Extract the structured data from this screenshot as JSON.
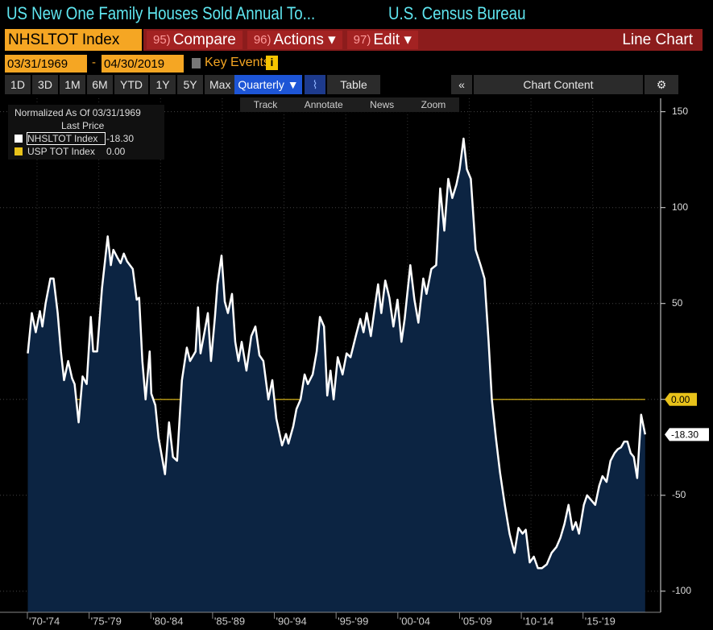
{
  "ui": {
    "title": "US New One Family Houses Sold Annual To...",
    "source": "U.S. Census Bureau",
    "security": "NHSLTOT Index",
    "menu": [
      {
        "num": "95)",
        "label": "Compare"
      },
      {
        "num": "96)",
        "label": "Actions ▾"
      },
      {
        "num": "97)",
        "label": "Edit ▾"
      }
    ],
    "chart_kind": "Line Chart",
    "start_date": "03/31/1969",
    "date_sep": "-",
    "end_date": "04/30/2019",
    "key_events": "Key Events",
    "ranges": [
      "1D",
      "3D",
      "1M",
      "6M",
      "YTD",
      "1Y",
      "5Y",
      "Max"
    ],
    "period": "Quarterly ▼",
    "table": "Table",
    "collapse": "«",
    "chart_content": "Chart Content",
    "tools": [
      "Track",
      "Annotate",
      "News",
      "Zoom"
    ],
    "legend_header": "Normalized As Of 03/31/1969",
    "legend_subheader": "Last Price"
  },
  "chart_data": {
    "type": "line",
    "xlim": [
      1967,
      2020.5
    ],
    "ylim": [
      -111,
      157
    ],
    "yticks": [
      -100,
      -50,
      0,
      50,
      100,
      150
    ],
    "xticks": [
      {
        "value": 1970,
        "label": "'70-'74"
      },
      {
        "value": 1975,
        "label": "'75-'79"
      },
      {
        "value": 1980,
        "label": "'80-'84"
      },
      {
        "value": 1985,
        "label": "'85-'89"
      },
      {
        "value": 1990,
        "label": "'90-'94"
      },
      {
        "value": 1995,
        "label": "'95-'99"
      },
      {
        "value": 2000,
        "label": "'00-'04"
      },
      {
        "value": 2005,
        "label": "'05-'09"
      },
      {
        "value": 2010,
        "label": "'10-'14"
      },
      {
        "value": 2015,
        "label": "'15-'19"
      }
    ],
    "grid": true,
    "series": [
      {
        "name": "NHSLTOT Index",
        "color": "#ffffff",
        "area_color": "#0c2442",
        "last_label": "-18.30",
        "x": [
          1969.25,
          1969.58,
          1969.9,
          1970.23,
          1970.43,
          1970.69,
          1971.08,
          1971.34,
          1971.67,
          1971.93,
          1972.19,
          1972.52,
          1972.84,
          1973.04,
          1973.37,
          1973.69,
          1974.02,
          1974.35,
          1974.54,
          1974.87,
          1975.26,
          1975.72,
          1975.98,
          1976.18,
          1976.5,
          1976.77,
          1977.03,
          1977.29,
          1977.75,
          1978.07,
          1978.27,
          1978.53,
          1978.79,
          1979.12,
          1979.25,
          1979.58,
          1979.84,
          1980.36,
          1980.69,
          1981.01,
          1981.34,
          1981.73,
          1982.13,
          1982.39,
          1982.84,
          1983.04,
          1983.24,
          1983.56,
          1983.83,
          1984.09,
          1984.41,
          1984.61,
          1984.94,
          1985.2,
          1985.46,
          1985.79,
          1986.05,
          1986.31,
          1986.57,
          1986.96,
          1987.35,
          1987.68,
          1988.01,
          1988.33,
          1988.73,
          1989.05,
          1989.38,
          1989.84,
          1990.16,
          1990.36,
          1990.75,
          1991.01,
          1991.34,
          1991.67,
          1991.93,
          1992.32,
          1992.65,
          1992.91,
          1993.24,
          1993.5,
          1993.76,
          1994.02,
          1994.35,
          1994.74,
          1995.07,
          1995.39,
          1995.85,
          1996.18,
          1996.44,
          1996.7,
          1997.03,
          1997.35,
          1997.62,
          1997.88,
          1998.2,
          1998.53,
          1998.86,
          1999.19,
          1999.51,
          1999.77,
          2000.23,
          2000.56,
          2000.88,
          2001.28,
          2001.54,
          2001.93,
          2002.32,
          2002.65,
          2002.98,
          2003.3,
          2003.63,
          2003.96,
          2004.22,
          2004.54,
          2004.81,
          2005.13,
          2005.52,
          2005.92,
          2006.24,
          2006.57,
          2006.83,
          2007.16,
          2007.49,
          2007.88,
          2008.27,
          2008.66,
          2008.99,
          2009.32,
          2009.58,
          2009.9,
          2010.23,
          2010.56,
          2010.88,
          2011.28,
          2011.67,
          2012.06,
          2012.39,
          2012.71,
          2013.04,
          2013.37,
          2013.63,
          2013.89,
          2014.28,
          2014.54,
          2014.94,
          2015.2,
          2015.53,
          2015.79,
          2016.12,
          2016.44,
          2016.77,
          2017.03,
          2017.29,
          2017.55,
          2017.81,
          2018.07,
          2018.33,
          2018.6,
          2018.92,
          2019.25
        ],
        "values": [
          24,
          45,
          35,
          46,
          38,
          50,
          63,
          63,
          45,
          25,
          10,
          20,
          11,
          8,
          -12,
          12,
          8,
          43,
          25,
          25,
          58,
          85,
          70,
          78,
          74,
          71,
          76,
          72,
          68,
          52,
          53,
          20,
          0,
          25,
          3,
          -3,
          -20,
          -39,
          -12,
          -30,
          -32,
          10,
          27,
          20,
          25,
          48,
          24,
          35,
          45,
          20,
          43,
          60,
          75,
          51,
          45,
          55,
          30,
          20,
          30,
          15,
          33,
          38,
          23,
          20,
          0,
          10,
          -10,
          -24,
          -18,
          -23,
          -14,
          -5,
          0,
          13,
          8,
          13,
          25,
          43,
          38,
          2,
          15,
          0,
          22,
          13,
          24,
          22,
          34,
          42,
          35,
          45,
          33,
          48,
          60,
          45,
          62,
          53,
          38,
          52,
          30,
          42,
          70,
          52,
          40,
          63,
          55,
          68,
          70,
          110,
          88,
          115,
          105,
          112,
          120,
          136,
          120,
          115,
          78,
          70,
          63,
          30,
          0,
          -20,
          -38,
          -55,
          -70,
          -80,
          -67,
          -70,
          -68,
          -85,
          -82,
          -88,
          -88,
          -86,
          -80,
          -77,
          -72,
          -65,
          -55,
          -68,
          -64,
          -70,
          -55,
          -50,
          -53,
          -55,
          -45,
          -40,
          -43,
          -32,
          -28,
          -26,
          -25,
          -22,
          -22,
          -28,
          -30,
          -41,
          -8,
          -18.3
        ]
      },
      {
        "name": "USP TOT Index",
        "color": "#e8c21a",
        "last_label": "0.00",
        "x": [
          1969.25,
          2019.25
        ],
        "values": [
          0,
          0
        ]
      }
    ]
  }
}
